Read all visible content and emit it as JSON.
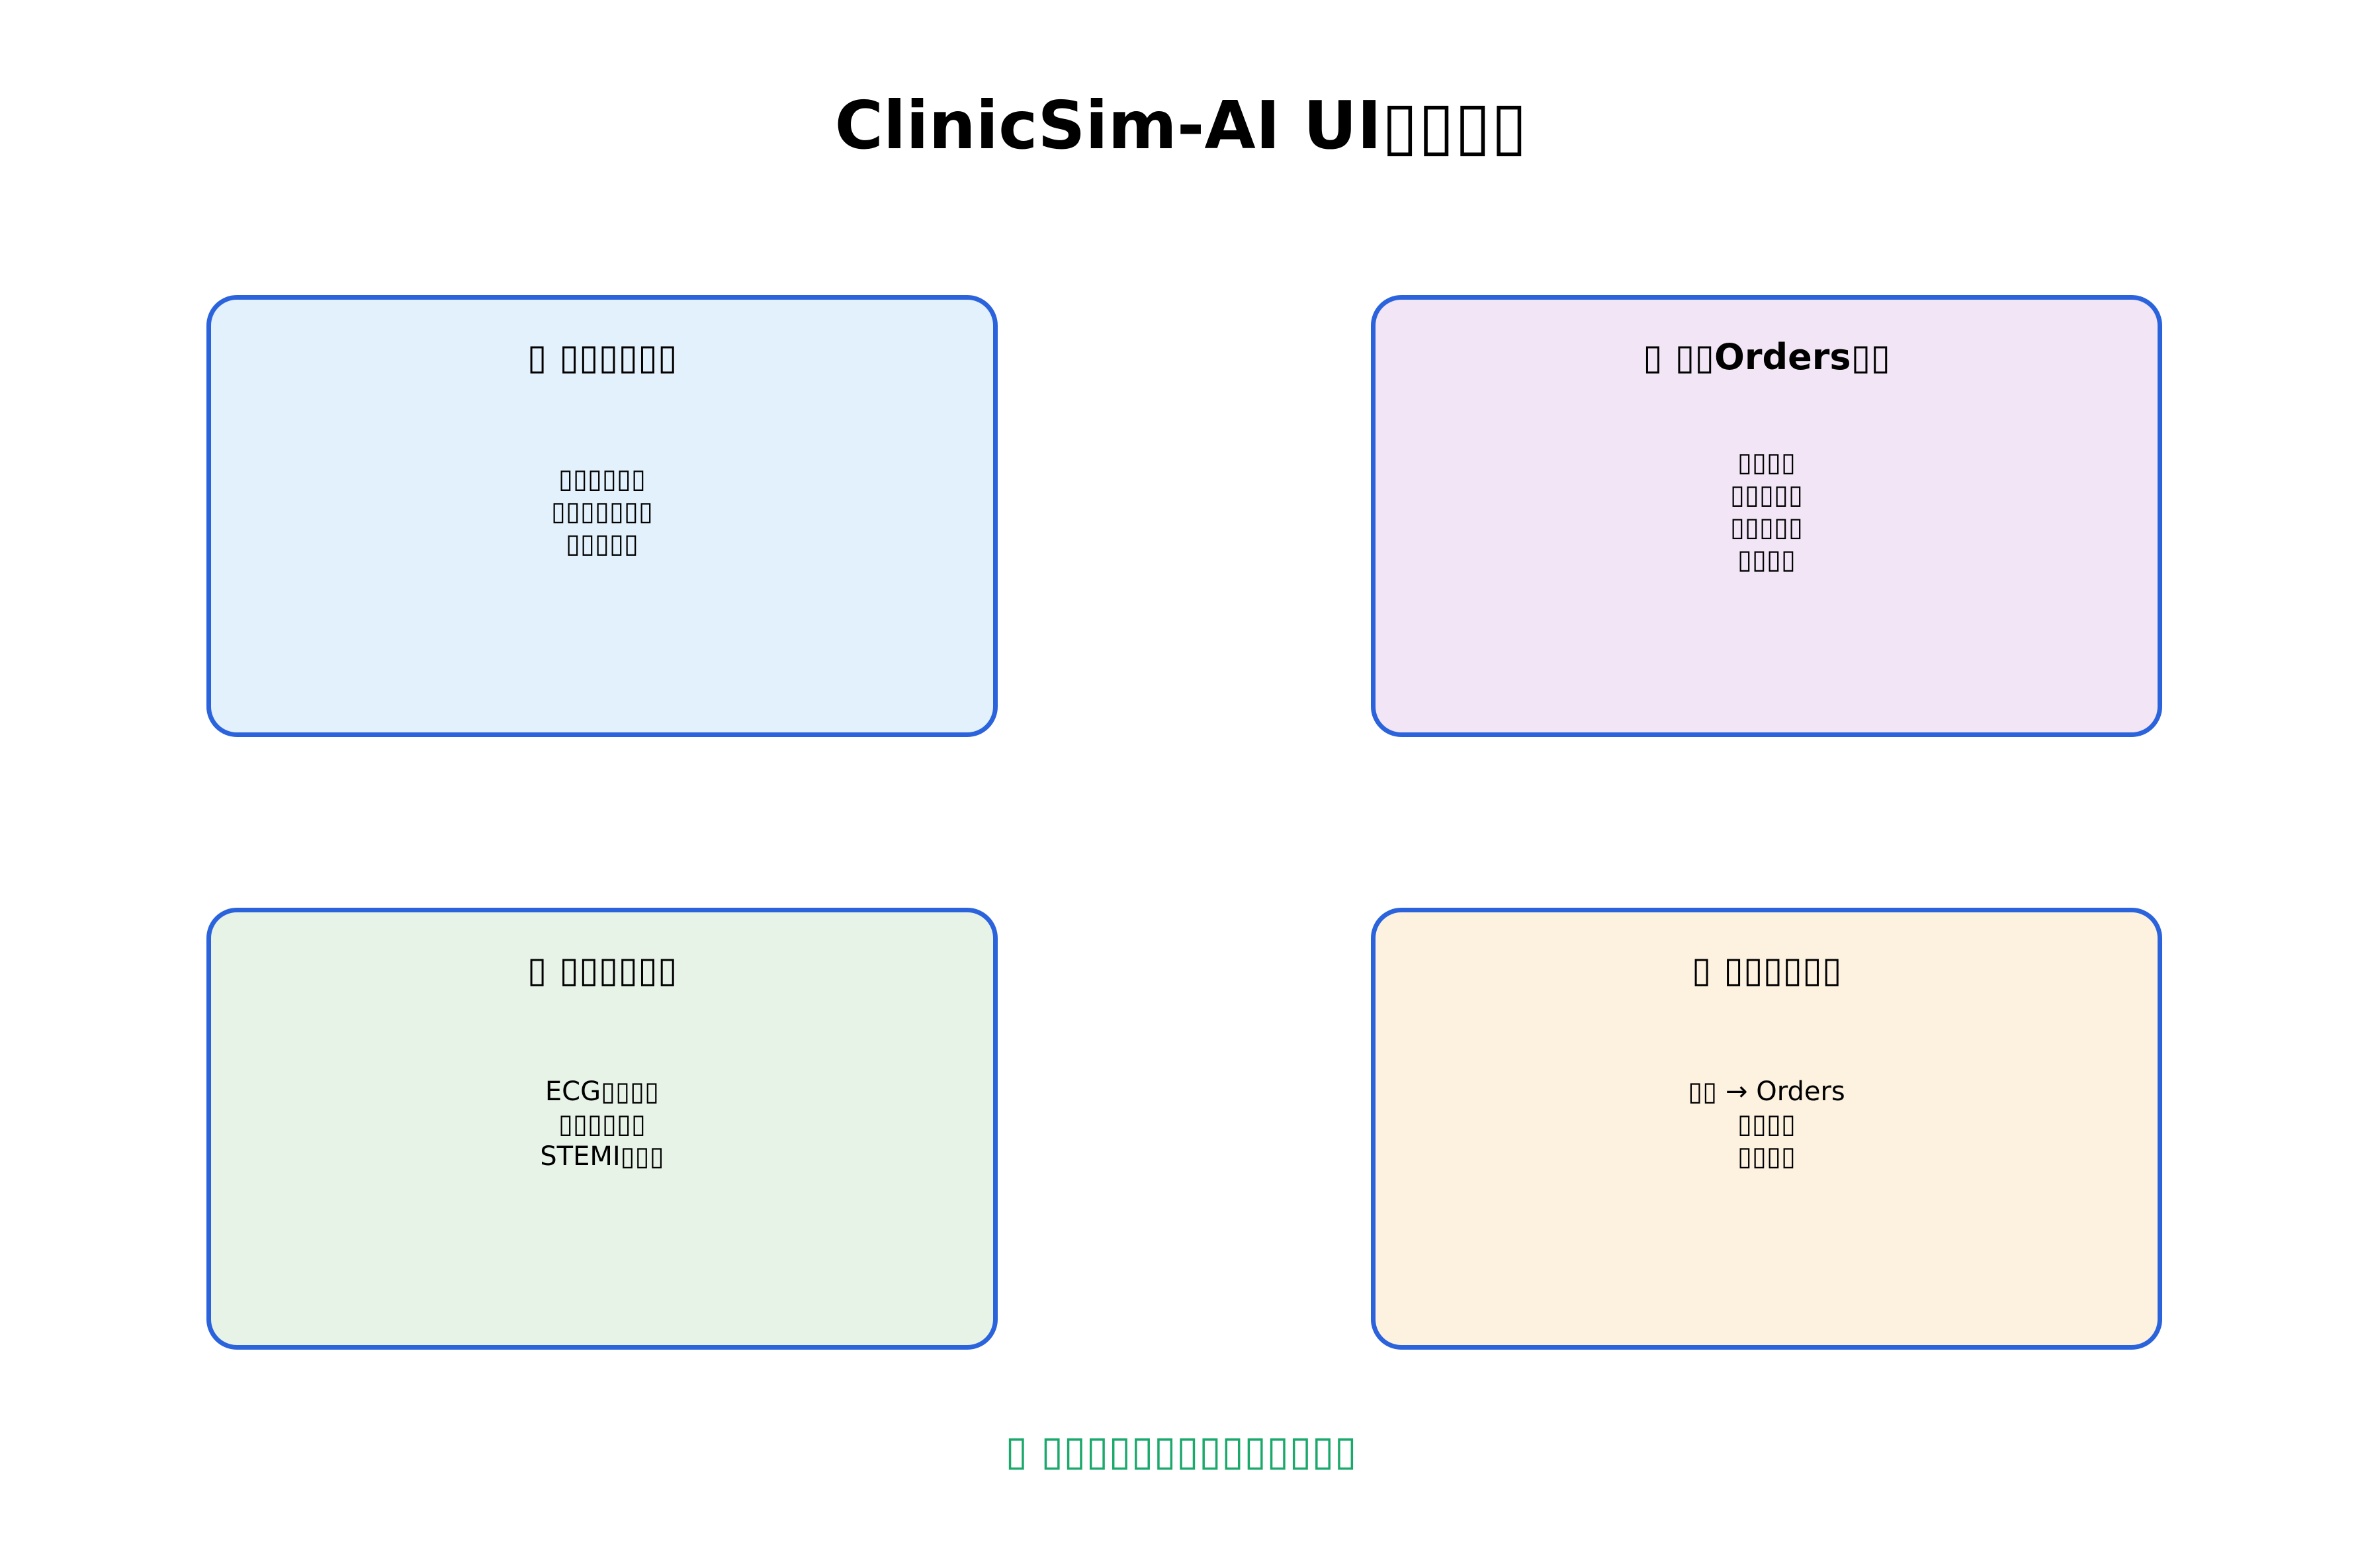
{
  "title": "ClinicSim-AI UI▯▯▯▯",
  "colors": {
    "border": "#2b63dc",
    "panel_1_bg": "#e3f1fc",
    "panel_2_bg": "#f1e5f6",
    "panel_3_bg": "#e8f3e8",
    "panel_4_bg": "#fdf2e0",
    "footer_text": "#1aa86b"
  },
  "panels": [
    {
      "title": "▯ ▯▯▯▯▯▯",
      "lines": [
        "▯▯▯▯▯▯",
        "▯▯▯▯▯▯▯",
        "▯▯▯▯▯"
      ]
    },
    {
      "title": "▯ ▯▯Orders▯▯",
      "lines": [
        "▯▯▯▯",
        "▯▯▯▯▯",
        "▯▯▯▯▯",
        "▯▯▯▯"
      ]
    },
    {
      "title": "▯ ▯▯▯▯▯▯",
      "lines": [
        "ECG▯▯▯▯",
        "▯▯▯▯▯▯",
        "STEMI▯▯▯"
      ]
    },
    {
      "title": "▯ ▯▯▯▯▯▯",
      "lines": [
        "▯▯ → Orders",
        "▯▯▯▯",
        "▯▯▯▯"
      ]
    }
  ],
  "footer": "▯ ▯▯▯▯▯▯▯▯▯▯▯▯▯▯"
}
